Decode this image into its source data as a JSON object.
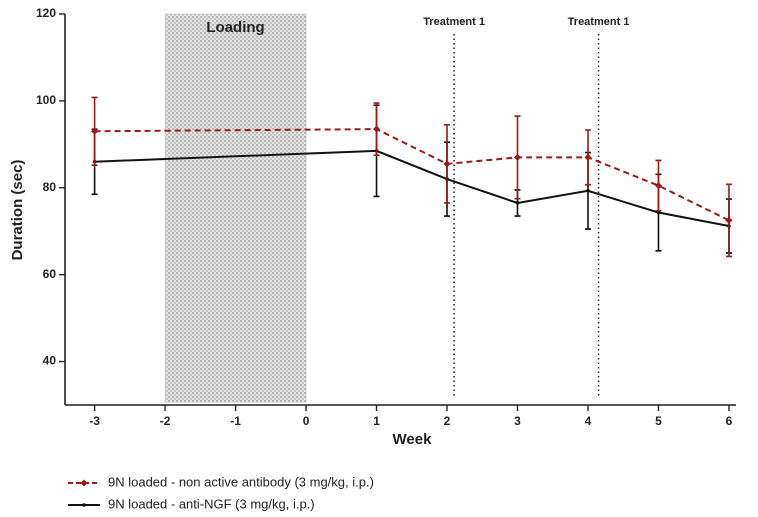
{
  "chart_data": {
    "type": "line",
    "x_label": "Week",
    "y_label": "Duration (sec)",
    "x": [
      -3,
      1,
      2,
      3,
      4,
      5,
      6
    ],
    "series": [
      {
        "name": "9N loaded - non active antibody (3 mg/kg, i.p.)",
        "color": "#a01818",
        "dashed": true,
        "marker": "diamond",
        "values": [
          93,
          93.5,
          85.5,
          87,
          87,
          80.5,
          72.5
        ],
        "errors": [
          7.8,
          6,
          9,
          9.5,
          6.3,
          5.8,
          8.3
        ]
      },
      {
        "name": "9N loaded - anti-NGF (3 mg/kg, i.p.)",
        "color": "#111111",
        "dashed": false,
        "marker": "dot",
        "values": [
          86,
          88.5,
          82,
          76.5,
          79.3,
          74.3,
          71.2
        ],
        "errors": [
          7.5,
          10.5,
          8.5,
          3,
          8.8,
          8.8,
          6.2
        ]
      }
    ],
    "xlim": [
      -3.42,
      6.1
    ],
    "xticks": [
      -3,
      -2,
      -1,
      0,
      1,
      2,
      3,
      4,
      5,
      6
    ],
    "ylim": [
      30,
      120
    ],
    "yticks": [
      40,
      60,
      80,
      100,
      120
    ],
    "shaded_region": {
      "label": "Loading",
      "x": [
        -2,
        0
      ]
    },
    "vertical_lines": [
      {
        "x": 2.1,
        "label": "Treatment 1"
      },
      {
        "x": 4.15,
        "label": "Treatment 1"
      }
    ]
  }
}
